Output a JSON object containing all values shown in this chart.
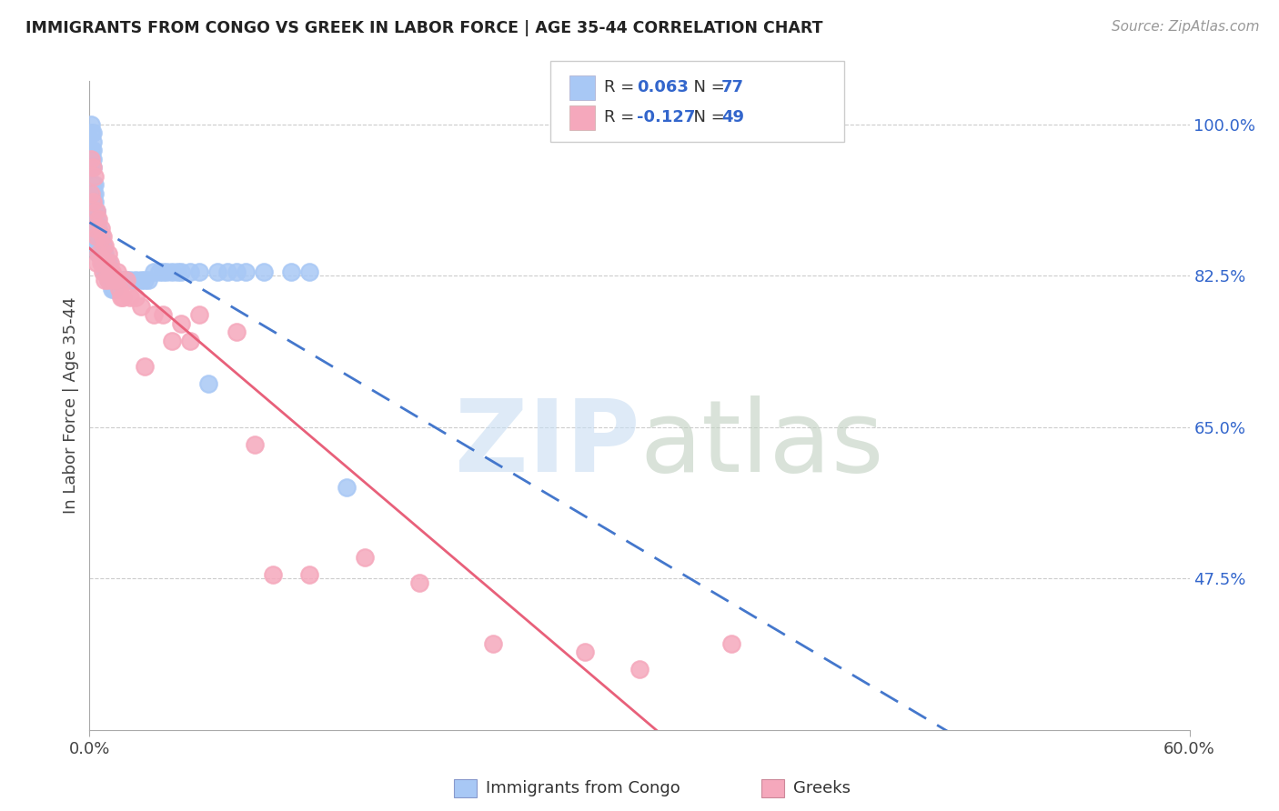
{
  "title": "IMMIGRANTS FROM CONGO VS GREEK IN LABOR FORCE | AGE 35-44 CORRELATION CHART",
  "source": "Source: ZipAtlas.com",
  "ylabel": "In Labor Force | Age 35-44",
  "xlim": [
    0.0,
    0.6
  ],
  "ylim": [
    0.3,
    1.05
  ],
  "xtick_positions": [
    0.0,
    0.6
  ],
  "xtick_labels": [
    "0.0%",
    "60.0%"
  ],
  "ytick_positions": [
    0.475,
    0.65,
    0.825,
    1.0
  ],
  "ytick_labels": [
    "47.5%",
    "65.0%",
    "82.5%",
    "100.0%"
  ],
  "congo_color": "#a8c8f5",
  "greek_color": "#f5a8bc",
  "congo_line_color": "#4477cc",
  "greek_line_color": "#e8607a",
  "congo_R": 0.063,
  "congo_N": 77,
  "greek_R": -0.127,
  "greek_N": 49,
  "r_color": "#3366cc",
  "n_color": "#3366cc",
  "grid_color": "#cccccc",
  "legend_entries": [
    "Immigrants from Congo",
    "Greeks"
  ],
  "congo_x": [
    0.001,
    0.001,
    0.001,
    0.001,
    0.001,
    0.002,
    0.002,
    0.002,
    0.002,
    0.002,
    0.002,
    0.002,
    0.002,
    0.003,
    0.003,
    0.003,
    0.003,
    0.003,
    0.003,
    0.004,
    0.004,
    0.004,
    0.004,
    0.004,
    0.005,
    0.005,
    0.005,
    0.005,
    0.006,
    0.006,
    0.006,
    0.007,
    0.007,
    0.007,
    0.008,
    0.008,
    0.008,
    0.009,
    0.009,
    0.01,
    0.01,
    0.01,
    0.011,
    0.011,
    0.012,
    0.012,
    0.013,
    0.013,
    0.014,
    0.015,
    0.016,
    0.017,
    0.018,
    0.02,
    0.022,
    0.025,
    0.028,
    0.03,
    0.032,
    0.035,
    0.038,
    0.04,
    0.042,
    0.045,
    0.048,
    0.05,
    0.055,
    0.06,
    0.065,
    0.07,
    0.075,
    0.08,
    0.085,
    0.095,
    0.11,
    0.12,
    0.14
  ],
  "congo_y": [
    1.0,
    0.99,
    0.97,
    0.96,
    0.95,
    0.99,
    0.98,
    0.97,
    0.96,
    0.95,
    0.93,
    0.92,
    0.91,
    0.93,
    0.92,
    0.91,
    0.9,
    0.89,
    0.88,
    0.9,
    0.89,
    0.88,
    0.87,
    0.86,
    0.88,
    0.87,
    0.86,
    0.85,
    0.87,
    0.86,
    0.85,
    0.86,
    0.85,
    0.84,
    0.85,
    0.84,
    0.83,
    0.84,
    0.83,
    0.84,
    0.83,
    0.82,
    0.83,
    0.82,
    0.82,
    0.81,
    0.82,
    0.81,
    0.82,
    0.82,
    0.82,
    0.82,
    0.82,
    0.82,
    0.82,
    0.82,
    0.82,
    0.82,
    0.82,
    0.83,
    0.83,
    0.83,
    0.83,
    0.83,
    0.83,
    0.83,
    0.83,
    0.83,
    0.7,
    0.83,
    0.83,
    0.83,
    0.83,
    0.83,
    0.83,
    0.83,
    0.58
  ],
  "greek_x": [
    0.001,
    0.001,
    0.002,
    0.002,
    0.003,
    0.003,
    0.004,
    0.004,
    0.004,
    0.005,
    0.005,
    0.006,
    0.006,
    0.007,
    0.007,
    0.008,
    0.008,
    0.009,
    0.01,
    0.01,
    0.011,
    0.012,
    0.013,
    0.014,
    0.015,
    0.016,
    0.017,
    0.018,
    0.02,
    0.022,
    0.025,
    0.028,
    0.03,
    0.035,
    0.04,
    0.045,
    0.05,
    0.055,
    0.06,
    0.08,
    0.09,
    0.1,
    0.12,
    0.15,
    0.18,
    0.22,
    0.27,
    0.3,
    0.35
  ],
  "greek_y": [
    0.96,
    0.92,
    0.95,
    0.91,
    0.94,
    0.88,
    0.9,
    0.87,
    0.84,
    0.89,
    0.85,
    0.88,
    0.84,
    0.87,
    0.83,
    0.86,
    0.82,
    0.84,
    0.85,
    0.82,
    0.84,
    0.83,
    0.82,
    0.82,
    0.83,
    0.81,
    0.8,
    0.8,
    0.82,
    0.8,
    0.8,
    0.79,
    0.72,
    0.78,
    0.78,
    0.75,
    0.77,
    0.75,
    0.78,
    0.76,
    0.63,
    0.48,
    0.48,
    0.5,
    0.47,
    0.4,
    0.39,
    0.37,
    0.4
  ]
}
